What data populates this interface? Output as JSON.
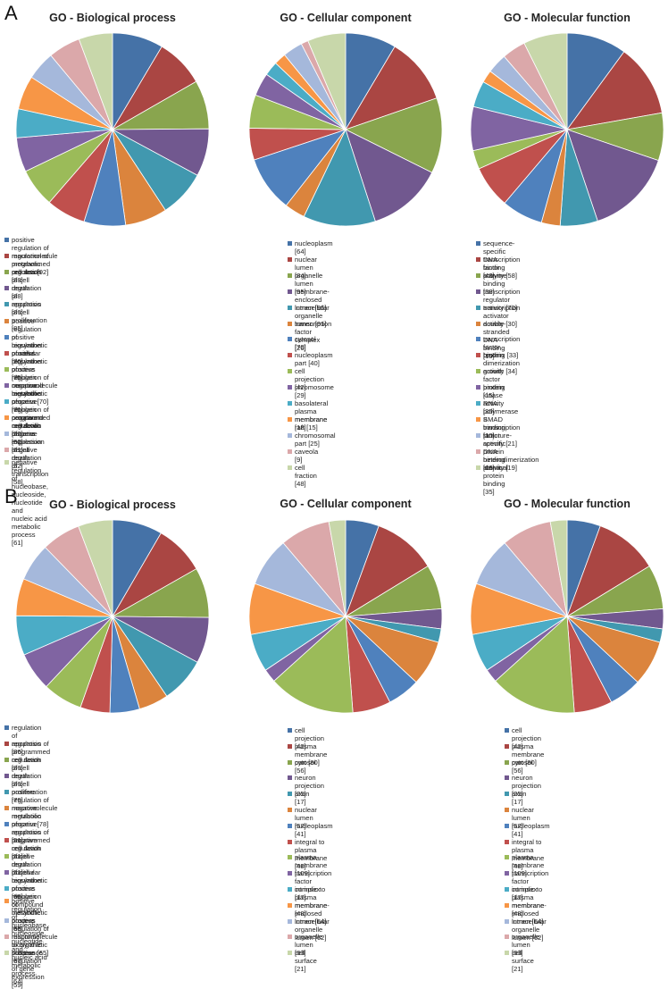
{
  "panels": [
    "A",
    "B"
  ],
  "chart_data": [
    {
      "type": "pie",
      "panel": "A",
      "title": "GO - Biological process",
      "categories": [
        "positive regulation of macromolecule metabolic process [92]",
        "regulation of programmed cell death [88]",
        "regulation of cell death [88]",
        "regulation of apoptosis [86]",
        "regulation of cell proliferation [85]",
        "positive regulation of biosynthetic process [76]",
        "positive regulation of cellular biosynthetic process [75]",
        "positive regulation of nitrogen compound metabolic process [71]",
        "positive regulation of macromolecule biosynthetic process [70]",
        "negative regulation of nitrogen compound metabolic process [62]",
        "negative regulation of programmed cell death [52]",
        "negative regulation of gene expression [61]",
        "negative regulation of cell death [52]",
        "negative regulation of transcription [58]",
        "negative regulation of nucleobase, nucleoside, nucleotide and\nnucleic acid metabolic process [61]"
      ],
      "values": [
        92,
        88,
        88,
        86,
        85,
        76,
        75,
        71,
        70,
        62,
        52,
        61,
        52,
        58,
        61
      ]
    },
    {
      "type": "pie",
      "panel": "A",
      "title": "GO - Cellular component",
      "categories": [
        "nucleoplasm [64]",
        "nuclear lumen [84]",
        "organelle lumen [95]",
        "membrane-enclosed lumen [95]",
        "intracellular organelle lumen [91]",
        "transcription factor complex [26]",
        "cytosol [70]",
        "nucleoplasm part [40]",
        "cell projection [42]",
        "chromosome [29]",
        "basolateral plasma membrane [18]",
        "membrane raft [15]",
        "chromosomal part [25]",
        "caveola [9]",
        "cell fraction [48]"
      ],
      "values": [
        64,
        84,
        95,
        95,
        91,
        26,
        70,
        40,
        42,
        29,
        18,
        15,
        25,
        9,
        48
      ]
    },
    {
      "type": "pie",
      "panel": "A",
      "title": "GO - Molecular function",
      "categories": [
        "sequence-specific DNA binding [48]",
        "transcription factor activity [58]",
        "enzyme binding [38]",
        "transcription regulator activity [70]",
        "transcription activator activity [30]",
        "double-stranded DNA binding [15]",
        "transcription factor binding [33]",
        "protein dimerization activity [34]",
        "growth factor binding [15]",
        "protein kinase activity [35]",
        "RNA polymerase II transcription factor activity [21]",
        "SMAD binding [10]",
        "structure-specific DNA binding [16]",
        "protein heterodimerization activity [19]",
        "identical protein binding [35]"
      ],
      "values": [
        48,
        58,
        38,
        70,
        30,
        15,
        33,
        34,
        15,
        35,
        21,
        10,
        16,
        19,
        35
      ]
    },
    {
      "type": "pie",
      "panel": "B",
      "title": "GO - Biological process",
      "categories": [
        "regulation of apoptosis [86]",
        "regulation of programmed cell death [86]",
        "regulation of cell death [86]",
        "regulation of cell proliferation [79]",
        "positive regulation of macromolecule metabolic process [78]",
        "negative regulation of apoptosis [51]",
        "negative regulation of programmed cell death [51]",
        "negative regulation of cell death [51]",
        "positive regulation of cellular biosynthetic process [68]",
        "positive regulation of nitrogen compound metabolic process [66]",
        "positive regulation of biosynthetic process [68]",
        "positive regulation of nucleobase, nucleoside, nucleotide and\nnucleic acid metabolic process [64]",
        "positive regulation of macromolecule biosynthetic process [65]",
        "response to organic substance [67]",
        "positive regulation of gene expression [59]"
      ],
      "values": [
        86,
        86,
        86,
        79,
        78,
        51,
        51,
        51,
        68,
        66,
        68,
        64,
        65,
        67,
        59
      ]
    },
    {
      "type": "pie",
      "panel": "B",
      "title": "GO - Cellular component",
      "categories": [
        "cell projection [42]",
        "plasma membrane part [80]",
        "cytosol [56]",
        "neuron projection [25]",
        "axon [17]",
        "nuclear lumen [57]",
        "nucleoplasm [41]",
        "integral to plasma membrane [48]",
        "plasma membrane [109]",
        "transcription factor complex [17]",
        "intrinsic to plasma membrane [48]",
        "membrane-enclosed lumen [64]",
        "intracellular organelle lumen [62]",
        "organelle lumen [63]",
        "cell surface [21]"
      ],
      "values": [
        42,
        80,
        56,
        25,
        17,
        57,
        41,
        48,
        109,
        17,
        48,
        64,
        62,
        63,
        21
      ]
    },
    {
      "type": "pie",
      "panel": "B",
      "title": "GO - Molecular function",
      "categories": [
        "cell projection [42]",
        "plasma membrane part [80]",
        "cytosol [56]",
        "neuron projection [25]",
        "axon [17]",
        "nuclear lumen [57]",
        "nucleoplasm [41]",
        "integral to plasma membrane [48]",
        "plasma membrane [109]",
        "transcription factor complex [17]",
        "intrinsic to plasma membrane [48]",
        "membrane-enclosed lumen [64]",
        "intracellular organelle lumen [62]",
        "organelle lumen [63]",
        "cell surface [21]"
      ],
      "values": [
        42,
        80,
        56,
        25,
        17,
        57,
        41,
        48,
        109,
        17,
        48,
        64,
        62,
        63,
        21
      ]
    }
  ],
  "palette": [
    "#4572a7",
    "#aa4643",
    "#89a54e",
    "#71588f",
    "#4198af",
    "#db843d",
    "#4f81bd",
    "#c0504d",
    "#9bbb59",
    "#8064a2",
    "#4bacc6",
    "#f79646",
    "#a5b8db",
    "#dba8aa",
    "#c8d7aa"
  ]
}
